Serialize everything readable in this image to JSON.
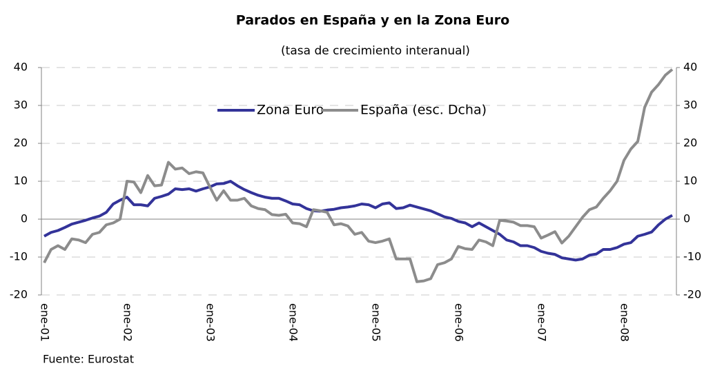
{
  "chart_data": {
    "type": "line",
    "title": "Parados en España y en la Zona Euro",
    "subtitle": "(tasa de crecimiento interanual)",
    "source": "Fuente: Eurostat",
    "categories": [
      "ene-01",
      null,
      null,
      null,
      null,
      null,
      null,
      null,
      null,
      null,
      null,
      null,
      "ene-02",
      null,
      null,
      null,
      null,
      null,
      null,
      null,
      null,
      null,
      null,
      null,
      "ene-03",
      null,
      null,
      null,
      null,
      null,
      null,
      null,
      null,
      null,
      null,
      null,
      "ene-04",
      null,
      null,
      null,
      null,
      null,
      null,
      null,
      null,
      null,
      null,
      null,
      "ene-05",
      null,
      null,
      null,
      null,
      null,
      null,
      null,
      null,
      null,
      null,
      null,
      "ene-06",
      null,
      null,
      null,
      null,
      null,
      null,
      null,
      null,
      null,
      null,
      null,
      "ene-07",
      null,
      null,
      null,
      null,
      null,
      null,
      null,
      null,
      null,
      null,
      null,
      "ene-08",
      null,
      null,
      null,
      null,
      null,
      null,
      null
    ],
    "series": [
      {
        "name": "Zona Euro",
        "color": "#333399",
        "values": [
          -4.5,
          -3.5,
          -3,
          -2.2,
          -1.3,
          -0.8,
          -0.3,
          0.3,
          0.8,
          1.8,
          4,
          5,
          5.8,
          3.8,
          3.8,
          3.5,
          5.5,
          6,
          6.6,
          8,
          7.8,
          8,
          7.4,
          8,
          8.5,
          9.3,
          9.4,
          10,
          8.8,
          7.8,
          7,
          6.3,
          5.8,
          5.5,
          5.5,
          4.8,
          4,
          3.8,
          2.8,
          2.2,
          2.1,
          2.4,
          2.6,
          3,
          3.2,
          3.5,
          4,
          3.8,
          3,
          4,
          4.3,
          2.8,
          3,
          3.7,
          3.2,
          2.7,
          2.2,
          1.4,
          0.6,
          0.2,
          -0.6,
          -1,
          -2,
          -1,
          -2,
          -3,
          -4,
          -5.5,
          -6,
          -7,
          -7,
          -7.5,
          -8.5,
          -9,
          -9.3,
          -10.2,
          -10.5,
          -10.8,
          -10.5,
          -9.5,
          -9.2,
          -8,
          -8,
          -7.5,
          -6.6,
          -6.2,
          -4.5,
          -4,
          -3.4,
          -1.5,
          0,
          1
        ]
      },
      {
        "name": "España (esc. Dcha)",
        "color": "#8c8c8c",
        "axis": "y2",
        "values": [
          -11.5,
          -8,
          -7,
          -8,
          -5.2,
          -5.5,
          -6.2,
          -4,
          -3.5,
          -1.5,
          -1,
          0,
          10,
          9.8,
          7,
          11.5,
          8.8,
          9,
          15,
          13.2,
          13.5,
          12,
          12.5,
          12.2,
          8.5,
          5,
          7.5,
          5,
          5,
          5.5,
          3.5,
          2.8,
          2.5,
          1.2,
          1,
          1.3,
          -1,
          -1.2,
          -2,
          2.5,
          2.2,
          1.8,
          -1.5,
          -1.2,
          -1.8,
          -4,
          -3.5,
          -5.8,
          -6.2,
          -5.8,
          -5.2,
          -10.5,
          -10.5,
          -10.5,
          -16.5,
          -16.3,
          -15.7,
          -12,
          -11.5,
          -10.5,
          -7.2,
          -7.8,
          -8,
          -5.5,
          -6,
          -7,
          -0.3,
          -0.5,
          -0.8,
          -1.7,
          -1.7,
          -2,
          -5,
          -4.2,
          -3.3,
          -6.3,
          -4.5,
          -2,
          0.5,
          2.5,
          3.2,
          5.5,
          7.5,
          10,
          15.5,
          18.5,
          20.5,
          29.5,
          33.5,
          35.5,
          38,
          39.5
        ]
      }
    ],
    "ylim": [
      -20,
      40
    ],
    "yticks": [
      -20,
      -10,
      0,
      10,
      20,
      30,
      40
    ],
    "y2lim": [
      -20,
      40
    ],
    "y2ticks": [
      -20,
      -10,
      0,
      10,
      20,
      30,
      40
    ],
    "grid": true,
    "legend": "top"
  }
}
